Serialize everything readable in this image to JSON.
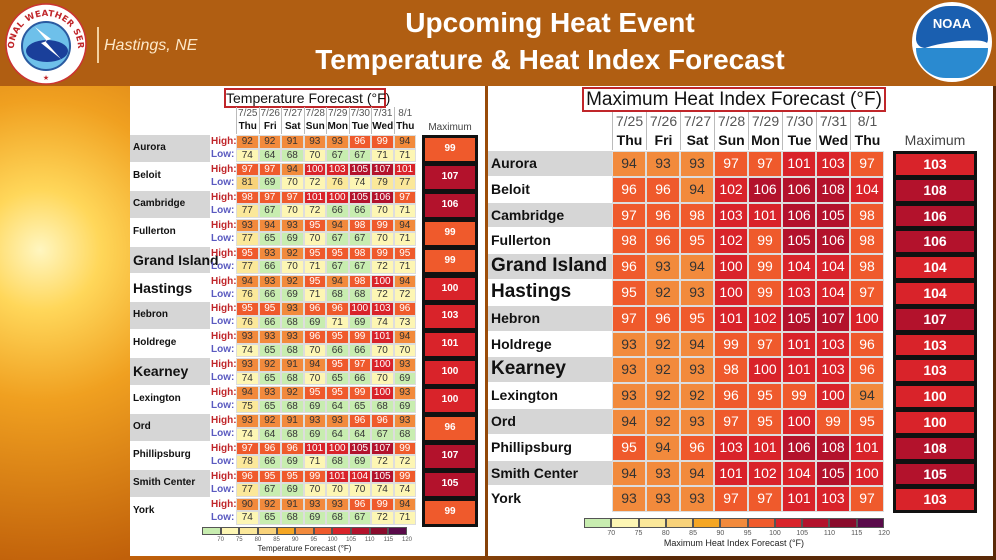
{
  "header": {
    "title_line1": "Upcoming Heat Event",
    "title_line2": "Temperature & Heat Index Forecast",
    "office": "Hastings, NE",
    "nws_logo_text": "NATIONAL WEATHER SERVICE",
    "noaa_logo_text": "NOAA",
    "color": "#b05e12"
  },
  "days": [
    {
      "date": "7/25",
      "dow": "Thu"
    },
    {
      "date": "7/26",
      "dow": "Fri"
    },
    {
      "date": "7/27",
      "dow": "Sat"
    },
    {
      "date": "7/28",
      "dow": "Sun"
    },
    {
      "date": "7/29",
      "dow": "Mon"
    },
    {
      "date": "7/30",
      "dow": "Tue"
    },
    {
      "date": "7/31",
      "dow": "Wed"
    },
    {
      "date": "8/1",
      "dow": "Thu"
    }
  ],
  "temperature": {
    "title": "Temperature Forecast (°F)",
    "max_label": "Maximum",
    "high_label": "High:",
    "low_label": "Low:",
    "colorbar_title": "Temperature Forecast (°F)",
    "rows": [
      {
        "city": "Aurora",
        "high": [
          92,
          92,
          91,
          93,
          93,
          96,
          99,
          94
        ],
        "low": [
          74,
          64,
          68,
          70,
          67,
          67,
          71,
          71
        ],
        "max": 99
      },
      {
        "city": "Beloit",
        "high": [
          97,
          97,
          94,
          100,
          103,
          105,
          107,
          101
        ],
        "low": [
          81,
          69,
          70,
          72,
          76,
          74,
          79,
          77
        ],
        "max": 107
      },
      {
        "city": "Cambridge",
        "high": [
          98,
          97,
          97,
          101,
          100,
          105,
          106,
          97
        ],
        "low": [
          77,
          67,
          70,
          72,
          66,
          66,
          70,
          71
        ],
        "max": 106
      },
      {
        "city": "Fullerton",
        "high": [
          93,
          94,
          93,
          95,
          94,
          98,
          99,
          94
        ],
        "low": [
          77,
          65,
          69,
          70,
          67,
          67,
          70,
          71
        ],
        "max": 99
      },
      {
        "city": "Grand Island",
        "high": [
          95,
          93,
          92,
          95,
          95,
          98,
          99,
          95
        ],
        "low": [
          77,
          66,
          70,
          71,
          67,
          67,
          72,
          71
        ],
        "max": 99
      },
      {
        "city": "Hastings",
        "high": [
          94,
          93,
          92,
          95,
          94,
          98,
          100,
          94
        ],
        "low": [
          76,
          66,
          69,
          71,
          68,
          68,
          72,
          72
        ],
        "max": 100
      },
      {
        "city": "Hebron",
        "high": [
          95,
          95,
          93,
          96,
          96,
          100,
          103,
          96
        ],
        "low": [
          76,
          66,
          68,
          69,
          71,
          69,
          74,
          73
        ],
        "max": 103
      },
      {
        "city": "Holdrege",
        "high": [
          93,
          93,
          93,
          96,
          95,
          99,
          101,
          94
        ],
        "low": [
          74,
          65,
          68,
          70,
          66,
          66,
          70,
          70
        ],
        "max": 101
      },
      {
        "city": "Kearney",
        "high": [
          93,
          92,
          91,
          94,
          95,
          97,
          100,
          93
        ],
        "low": [
          74,
          65,
          68,
          70,
          65,
          66,
          70,
          69
        ],
        "max": 100
      },
      {
        "city": "Lexington",
        "high": [
          94,
          93,
          92,
          95,
          95,
          99,
          100,
          93
        ],
        "low": [
          75,
          65,
          68,
          69,
          64,
          65,
          68,
          69
        ],
        "max": 100
      },
      {
        "city": "Ord",
        "high": [
          93,
          92,
          91,
          93,
          93,
          96,
          96,
          93
        ],
        "low": [
          74,
          64,
          68,
          69,
          64,
          64,
          67,
          68
        ],
        "max": 96
      },
      {
        "city": "Phillipsburg",
        "high": [
          97,
          96,
          96,
          101,
          100,
          105,
          107,
          99
        ],
        "low": [
          78,
          66,
          69,
          71,
          68,
          69,
          72,
          72
        ],
        "max": 107
      },
      {
        "city": "Smith Center",
        "high": [
          96,
          95,
          95,
          99,
          101,
          104,
          105,
          99
        ],
        "low": [
          77,
          67,
          69,
          70,
          70,
          70,
          74,
          74
        ],
        "max": 105
      },
      {
        "city": "York",
        "high": [
          90,
          92,
          91,
          93,
          93,
          96,
          99,
          94
        ],
        "low": [
          74,
          65,
          68,
          69,
          68,
          67,
          72,
          71
        ],
        "max": 99
      }
    ]
  },
  "heat_index": {
    "title": "Maximum Heat Index Forecast (°F)",
    "max_label": "Maximum",
    "colorbar_title": "Maximum Heat Index Forecast (°F)",
    "rows": [
      {
        "city": "Aurora",
        "values": [
          94,
          93,
          93,
          97,
          97,
          101,
          103,
          97
        ],
        "max": 103
      },
      {
        "city": "Beloit",
        "values": [
          96,
          96,
          94,
          102,
          106,
          106,
          108,
          104
        ],
        "max": 108
      },
      {
        "city": "Cambridge",
        "values": [
          97,
          96,
          98,
          103,
          101,
          106,
          105,
          98
        ],
        "max": 106
      },
      {
        "city": "Fullerton",
        "values": [
          98,
          96,
          95,
          102,
          99,
          105,
          106,
          98
        ],
        "max": 106
      },
      {
        "city": "Grand Island",
        "values": [
          96,
          93,
          94,
          100,
          99,
          104,
          104,
          98
        ],
        "max": 104
      },
      {
        "city": "Hastings",
        "values": [
          95,
          92,
          93,
          100,
          99,
          103,
          104,
          97
        ],
        "max": 104
      },
      {
        "city": "Hebron",
        "values": [
          97,
          96,
          95,
          101,
          102,
          105,
          107,
          100
        ],
        "max": 107
      },
      {
        "city": "Holdrege",
        "values": [
          93,
          92,
          94,
          99,
          97,
          101,
          103,
          96
        ],
        "max": 103
      },
      {
        "city": "Kearney",
        "values": [
          93,
          92,
          93,
          98,
          100,
          101,
          103,
          96
        ],
        "max": 103
      },
      {
        "city": "Lexington",
        "values": [
          93,
          92,
          92,
          96,
          95,
          99,
          100,
          94
        ],
        "max": 100
      },
      {
        "city": "Ord",
        "values": [
          94,
          92,
          93,
          97,
          95,
          100,
          99,
          95
        ],
        "max": 100
      },
      {
        "city": "Phillipsburg",
        "values": [
          95,
          94,
          96,
          103,
          101,
          106,
          108,
          101
        ],
        "max": 108
      },
      {
        "city": "Smith Center",
        "values": [
          94,
          93,
          94,
          101,
          102,
          104,
          105,
          100
        ],
        "max": 105
      },
      {
        "city": "York",
        "values": [
          93,
          93,
          93,
          97,
          97,
          101,
          103,
          97
        ],
        "max": 103
      }
    ]
  },
  "colorbar": {
    "ticks": [
      70,
      75,
      80,
      85,
      90,
      95,
      100,
      105,
      110,
      115,
      120
    ],
    "colors": [
      "#c8edb0",
      "#fdf6b4",
      "#fbe89a",
      "#f8d27a",
      "#f5a623",
      "#f28a3c",
      "#ef5a2c",
      "#d9232a",
      "#b3122c",
      "#8a0b2c",
      "#5a0a4a"
    ]
  }
}
